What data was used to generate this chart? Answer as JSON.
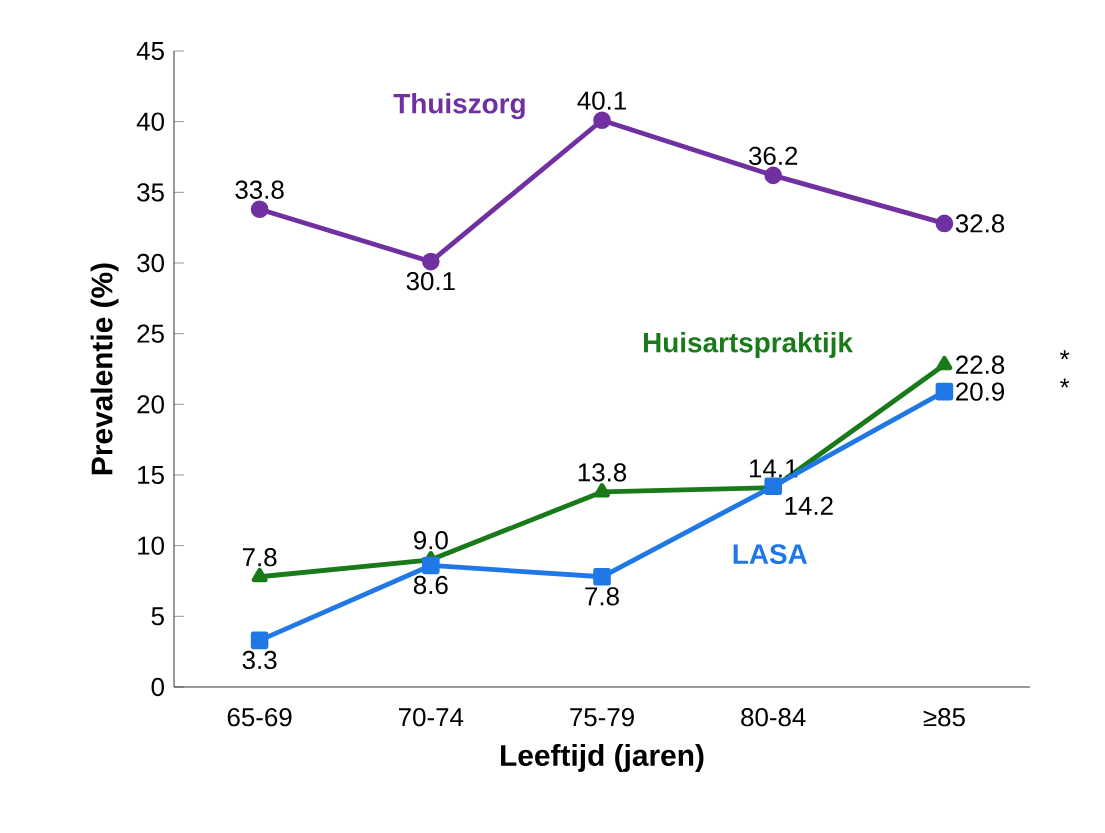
{
  "chart_data": {
    "type": "line",
    "xlabel": "Leeftijd (jaren)",
    "ylabel": "Prevalentie  (%)",
    "categories": [
      "65-69",
      "70-74",
      "75-79",
      "80-84",
      "≥85"
    ],
    "series": [
      {
        "name": "Thuiszorg",
        "color": "#7030a0",
        "marker": "circle",
        "values": [
          33.8,
          30.1,
          40.1,
          36.2,
          32.8
        ],
        "value_labels": [
          "33.8",
          "30.1",
          "40.1",
          "36.2",
          "32.8"
        ]
      },
      {
        "name": "Huisartspraktijk",
        "color": "#1a7a1a",
        "marker": "triangle",
        "values": [
          7.8,
          9.0,
          13.8,
          14.1,
          22.8
        ],
        "value_labels": [
          "7.8",
          "9.0",
          "13.8",
          "14.1",
          "22.8"
        ]
      },
      {
        "name": "LASA",
        "color": "#1f78e6",
        "marker": "square",
        "values": [
          3.3,
          8.6,
          7.8,
          14.2,
          20.9
        ],
        "value_labels": [
          "3.3",
          "8.6",
          "7.8",
          "14.2",
          "20.9"
        ]
      }
    ],
    "annotations": [
      "*",
      "*"
    ],
    "ylim": [
      0,
      45
    ],
    "yticks": [
      0,
      5,
      10,
      15,
      20,
      25,
      30,
      35,
      40,
      45
    ],
    "grid": false,
    "line_style": "solid"
  }
}
